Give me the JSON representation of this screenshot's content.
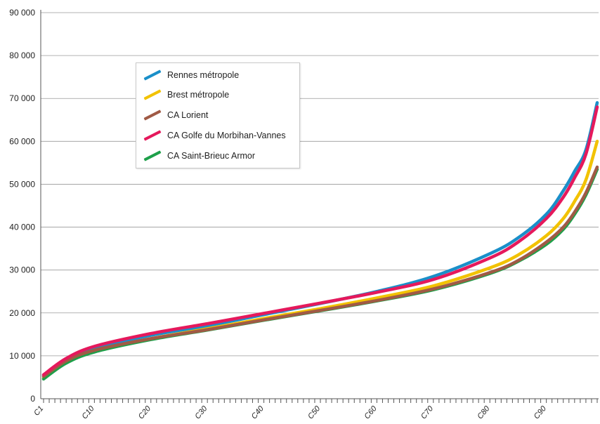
{
  "chart_data": {
    "type": "line",
    "title": "",
    "xlabel": "",
    "ylabel": "",
    "ylim": [
      0,
      90000
    ],
    "y_ticks": [
      "0",
      "10 000",
      "20 000",
      "30 000",
      "40 000",
      "50 000",
      "60 000",
      "70 000",
      "80 000",
      "90 000"
    ],
    "x_tick_labels": [
      "C1",
      "C10",
      "C20",
      "C30",
      "C40",
      "C50",
      "C60",
      "C70",
      "C80",
      "C90"
    ],
    "x_range": [
      1,
      99
    ],
    "grid": "horizontal",
    "legend_position": "top-left",
    "series": [
      {
        "name": "Rennes métropole",
        "color": "#1a8fc9",
        "points": [
          [
            1,
            5500
          ],
          [
            5,
            9200
          ],
          [
            10,
            11800
          ],
          [
            20,
            14800
          ],
          [
            30,
            17000
          ],
          [
            40,
            19600
          ],
          [
            50,
            22200
          ],
          [
            60,
            25000
          ],
          [
            70,
            28500
          ],
          [
            80,
            33800
          ],
          [
            85,
            37500
          ],
          [
            90,
            43000
          ],
          [
            93,
            48500
          ],
          [
            95,
            53000
          ],
          [
            97,
            58000
          ],
          [
            99,
            69000
          ]
        ]
      },
      {
        "name": "Brest métropole",
        "color": "#f2c200",
        "points": [
          [
            1,
            4800
          ],
          [
            5,
            8500
          ],
          [
            10,
            11200
          ],
          [
            20,
            14000
          ],
          [
            30,
            16300
          ],
          [
            40,
            18700
          ],
          [
            50,
            21000
          ],
          [
            60,
            23500
          ],
          [
            70,
            26300
          ],
          [
            80,
            30500
          ],
          [
            85,
            33500
          ],
          [
            90,
            38000
          ],
          [
            93,
            42000
          ],
          [
            95,
            46000
          ],
          [
            97,
            51000
          ],
          [
            99,
            60000
          ]
        ]
      },
      {
        "name": "CA Lorient",
        "color": "#a05a45",
        "points": [
          [
            1,
            5200
          ],
          [
            5,
            8800
          ],
          [
            10,
            11300
          ],
          [
            20,
            14000
          ],
          [
            30,
            16100
          ],
          [
            40,
            18400
          ],
          [
            50,
            20600
          ],
          [
            60,
            22900
          ],
          [
            70,
            25600
          ],
          [
            80,
            29400
          ],
          [
            85,
            32200
          ],
          [
            90,
            36500
          ],
          [
            93,
            40000
          ],
          [
            95,
            43500
          ],
          [
            97,
            48000
          ],
          [
            99,
            54000
          ]
        ]
      },
      {
        "name": "CA Golfe du Morbihan-Vannes",
        "color": "#e5195c",
        "points": [
          [
            1,
            5600
          ],
          [
            5,
            9400
          ],
          [
            10,
            12200
          ],
          [
            20,
            15200
          ],
          [
            30,
            17500
          ],
          [
            40,
            19900
          ],
          [
            50,
            22300
          ],
          [
            60,
            24800
          ],
          [
            70,
            27800
          ],
          [
            80,
            32800
          ],
          [
            85,
            36500
          ],
          [
            90,
            42000
          ],
          [
            93,
            47000
          ],
          [
            95,
            51500
          ],
          [
            97,
            57000
          ],
          [
            99,
            68000
          ]
        ]
      },
      {
        "name": "CA Saint-Brieuc Armor",
        "color": "#1ea04a",
        "points": [
          [
            1,
            4600
          ],
          [
            5,
            8300
          ],
          [
            10,
            10900
          ],
          [
            20,
            13800
          ],
          [
            30,
            16000
          ],
          [
            40,
            18300
          ],
          [
            50,
            20500
          ],
          [
            60,
            22800
          ],
          [
            70,
            25400
          ],
          [
            80,
            29200
          ],
          [
            85,
            32000
          ],
          [
            90,
            36000
          ],
          [
            93,
            39500
          ],
          [
            95,
            43000
          ],
          [
            97,
            47500
          ],
          [
            99,
            53500
          ]
        ]
      }
    ]
  }
}
